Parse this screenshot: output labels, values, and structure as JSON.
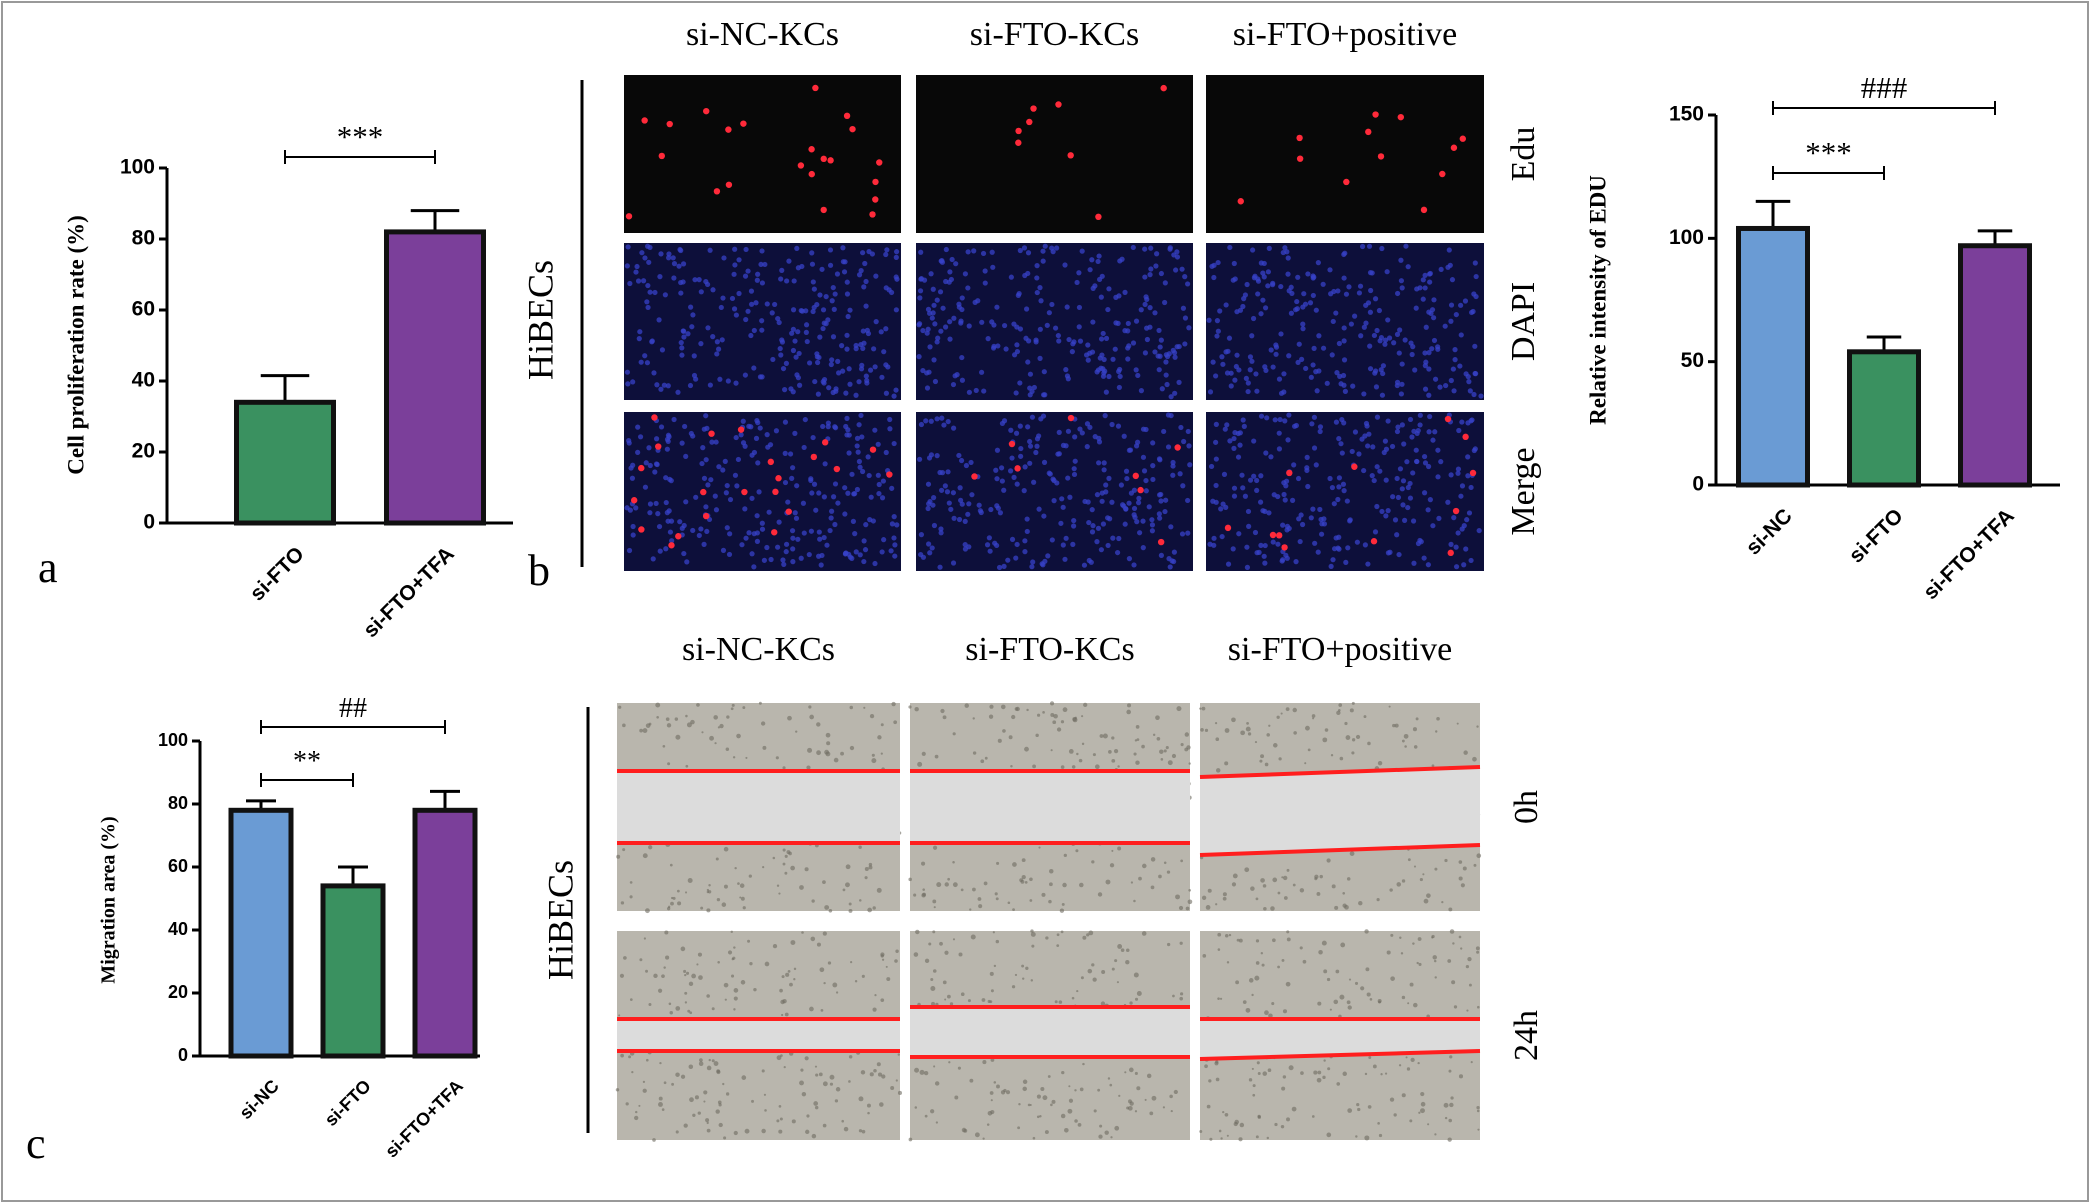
{
  "chart_data": [
    {
      "type": "bar",
      "ylabel": "Cell proliferation rate (%)",
      "categories": [
        "si-FTO",
        "si-FTO+TFA"
      ],
      "values": [
        34,
        82
      ],
      "errors": [
        7.5,
        6
      ],
      "colors": [
        "#3a9160",
        "#7b3f9a"
      ],
      "ylim": [
        0,
        100
      ],
      "yticks": [
        0,
        20,
        40,
        60,
        80,
        100
      ],
      "annotations": [
        {
          "text": "***",
          "between": [
            0,
            1
          ]
        }
      ]
    },
    {
      "type": "bar",
      "ylabel": "Relative intensity of EDU",
      "categories": [
        "si-NC",
        "si-FTO",
        "si-FTO+TFA"
      ],
      "values": [
        104,
        54,
        97
      ],
      "errors": [
        11,
        6,
        6
      ],
      "colors": [
        "#6a9bd4",
        "#3a9160",
        "#7b3f9a"
      ],
      "ylim": [
        0,
        150
      ],
      "yticks": [
        0,
        50,
        100,
        150
      ],
      "annotations": [
        {
          "text": "***",
          "between": [
            0,
            1
          ]
        },
        {
          "text": "###",
          "between": [
            0,
            2
          ]
        }
      ]
    },
    {
      "type": "bar",
      "ylabel": "Migration area (%)",
      "categories": [
        "si-NC",
        "si-FTO",
        "si-FTO+TFA"
      ],
      "values": [
        78,
        54,
        78
      ],
      "errors": [
        3,
        6,
        6
      ],
      "colors": [
        "#6a9bd4",
        "#3a9160",
        "#7b3f9a"
      ],
      "ylim": [
        0,
        100
      ],
      "yticks": [
        0,
        20,
        40,
        60,
        80,
        100
      ],
      "annotations": [
        {
          "text": "**",
          "between": [
            0,
            1
          ]
        },
        {
          "text": "##",
          "between": [
            0,
            2
          ]
        }
      ]
    }
  ],
  "panel_labels": [
    "a",
    "b",
    "c"
  ],
  "edu_images": {
    "columns": [
      "si-NC-KCs",
      "si-FTO-KCs",
      "si-FTO+positive"
    ],
    "rows": [
      "Edu",
      "DAPI",
      "Merge"
    ],
    "side_label": "HiBECs"
  },
  "migration_images": {
    "columns": [
      "si-NC-KCs",
      "si-FTO-KCs",
      "si-FTO+positive"
    ],
    "rows": [
      "0h",
      "24h"
    ],
    "side_label": "HiBECs"
  }
}
